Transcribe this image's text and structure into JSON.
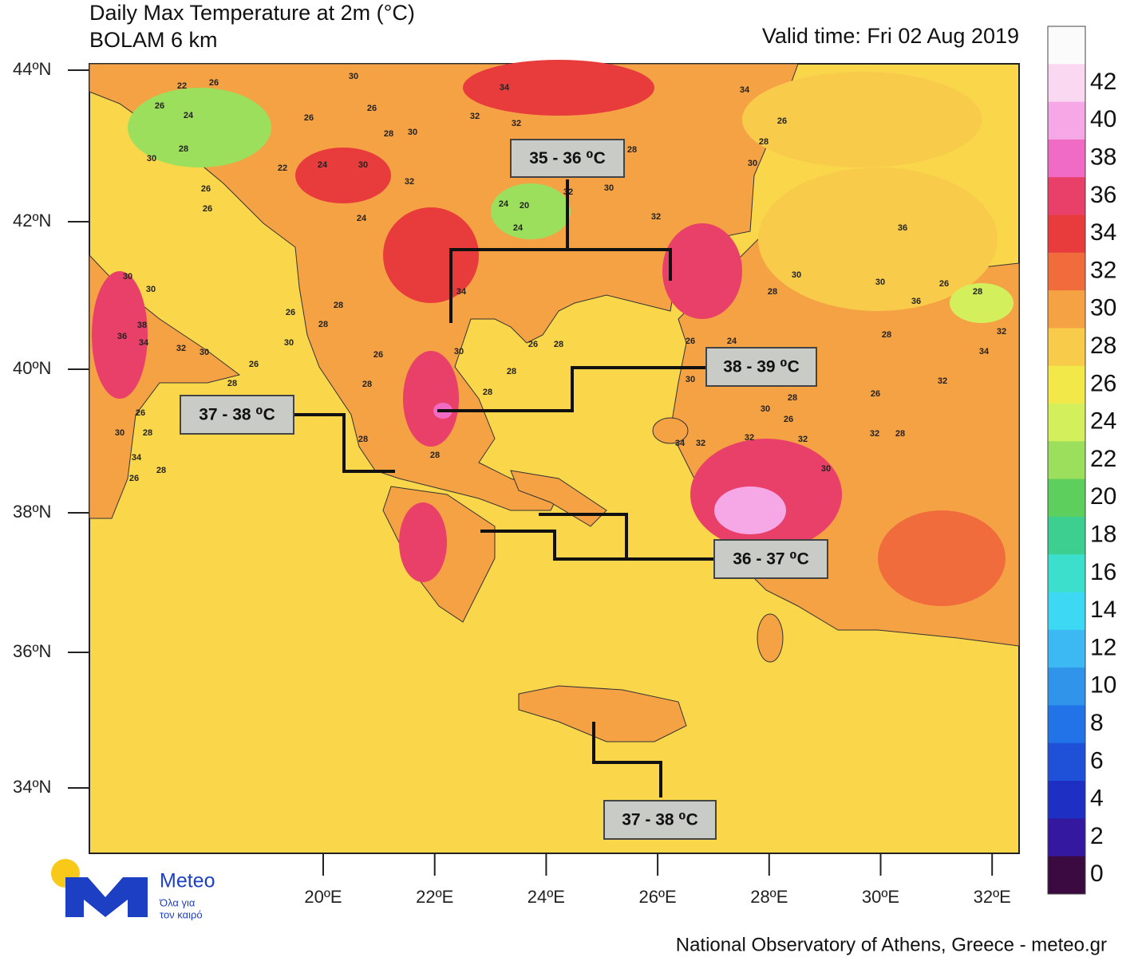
{
  "header": {
    "title": "Daily Max Temperature at 2m (°C)",
    "subtitle": "BOLAM 6 km",
    "valid_time": "Valid time: Fri 02 Aug 2019"
  },
  "latitude_labels": [
    "44ºN",
    "42ºN",
    "40ºN",
    "38ºN",
    "36ºN",
    "34ºN"
  ],
  "longitude_labels": [
    "20ºE",
    "22ºE",
    "24ºE",
    "26ºE",
    "28ºE",
    "30ºE",
    "32ºE"
  ],
  "colorbar": {
    "labels": [
      42,
      40,
      38,
      36,
      34,
      32,
      30,
      28,
      26,
      24,
      22,
      20,
      18,
      16,
      14,
      12,
      10,
      8,
      6,
      4,
      2,
      0
    ],
    "colors": [
      "#fbfbfb",
      "#fbd8f2",
      "#f6a8e6",
      "#f06cc4",
      "#e84068",
      "#e83c3c",
      "#f06c3c",
      "#f5a244",
      "#f8cc4a",
      "#f2e84a",
      "#d4ef5c",
      "#9cdf5c",
      "#5ccf5c",
      "#3ccf90",
      "#3cdfcc",
      "#3cd8f4",
      "#3cb8f2",
      "#2f94ea",
      "#2272e8",
      "#1e50d8",
      "#1e30c4",
      "#3418a0",
      "#3a0a40"
    ]
  },
  "annotations": [
    "35 - 36 ⁰C",
    "38 - 39 ⁰C",
    "37 - 38 ⁰C",
    "36 - 37 ⁰C",
    "37 - 38 ⁰C"
  ],
  "contour_labels": [
    22,
    26,
    30,
    26,
    24,
    26,
    28,
    30,
    26,
    22,
    24,
    30,
    32,
    26,
    26,
    24,
    28,
    30,
    34,
    32,
    32,
    24,
    20,
    24,
    34,
    32,
    26,
    28,
    30,
    28,
    32,
    30,
    34,
    36,
    30,
    28,
    30,
    26,
    28,
    36,
    32,
    34,
    28,
    32,
    26,
    30,
    30,
    36,
    38,
    34,
    32,
    30,
    26,
    28,
    26,
    28,
    30,
    34,
    28,
    26,
    28,
    28,
    26,
    30,
    28,
    26,
    28,
    28,
    30,
    28,
    28,
    26,
    28,
    26,
    24,
    28,
    30,
    26,
    32,
    30,
    32,
    28,
    30,
    32,
    34,
    32
  ],
  "logo": {
    "name": "Meteo",
    "tagline_1": "Όλα για",
    "tagline_2": "τον καιρό"
  },
  "footer": "National Observatory of Athens, Greece - meteo.gr"
}
